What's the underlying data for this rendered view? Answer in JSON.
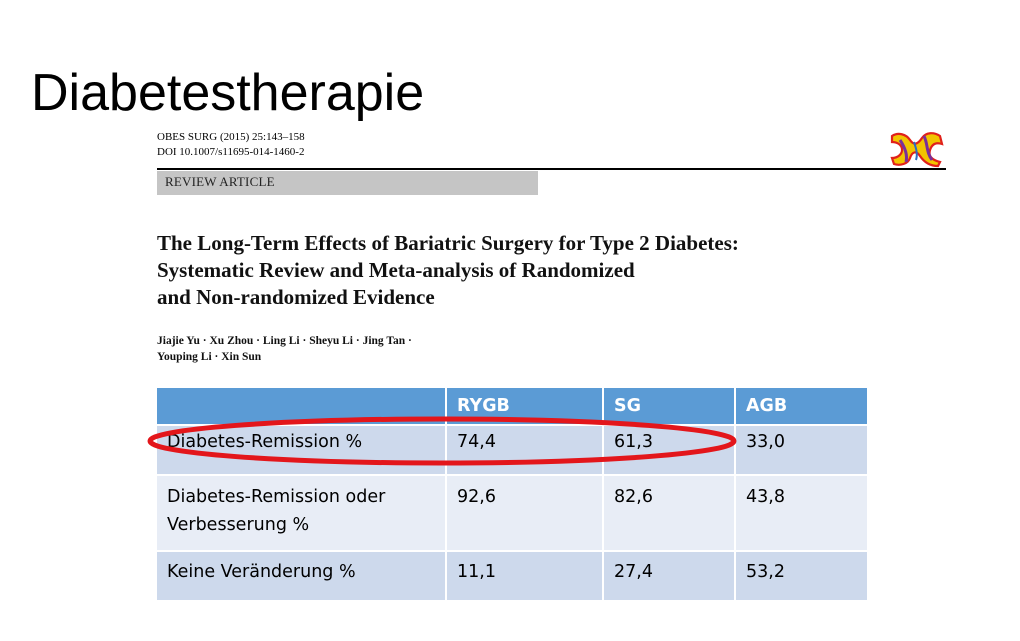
{
  "slide": {
    "title": "Diabetestherapie"
  },
  "article": {
    "citation_line1": "OBES SURG (2015) 25:143–158",
    "citation_line2": "DOI 10.1007/s11695-014-1460-2",
    "type": "REVIEW ARTICLE",
    "title_lines": [
      "The Long-Term Effects of Bariatric Surgery for Type 2 Diabetes:",
      "Systematic Review and Meta-analysis of Randomized",
      "and Non-randomized Evidence"
    ],
    "authors_lines": [
      "Jiajie Yu · Xu Zhou · Ling Li · Sheyu Li · Jing Tan ·",
      "Youping Li · Xin Sun"
    ],
    "logo_icon": "journal-logo-icon"
  },
  "table": {
    "headers": [
      "",
      "RYGB",
      "SG",
      "AGB"
    ],
    "rows": [
      {
        "label": "Diabetes-Remission %",
        "rygb": "74,4",
        "sg": "61,3",
        "agb": "33,0"
      },
      {
        "label": "Diabetes-Remission oder Verbesserung %",
        "rygb": "92,6",
        "sg": "82,6",
        "agb": "43,8"
      },
      {
        "label": "Keine Veränderung %",
        "rygb": "11,1",
        "sg": "27,4",
        "agb": "53,2"
      }
    ]
  },
  "colors": {
    "header_bg": "#5b9bd5",
    "row_dark": "#cdd9ec",
    "row_light": "#e8edf6",
    "highlight": "#e3161b"
  }
}
